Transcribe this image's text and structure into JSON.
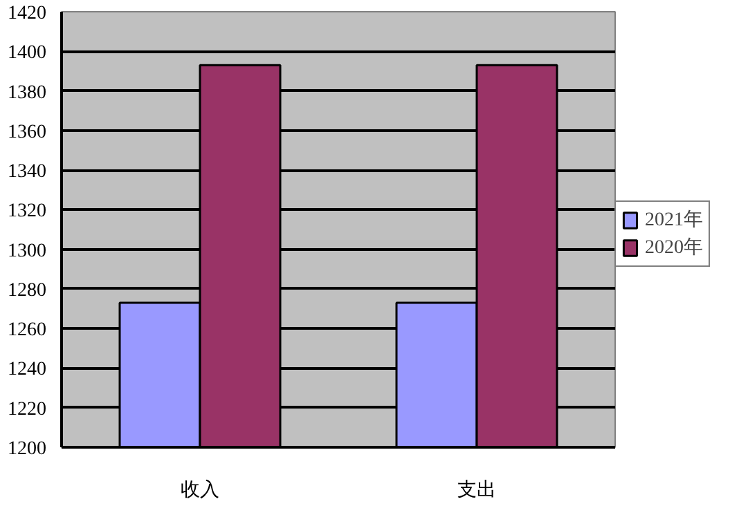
{
  "chart_data": {
    "type": "bar",
    "categories": [
      "收入",
      "支出"
    ],
    "series": [
      {
        "name": "2021年",
        "color": "#9999ff",
        "values": [
          1273,
          1273
        ]
      },
      {
        "name": "2020年",
        "color": "#993366",
        "values": [
          1393,
          1393
        ]
      }
    ],
    "ylim": [
      1200,
      1420
    ],
    "yticks": [
      1200,
      1220,
      1240,
      1260,
      1280,
      1300,
      1320,
      1340,
      1360,
      1380,
      1400,
      1420
    ],
    "grid": "y",
    "legend": "right"
  }
}
